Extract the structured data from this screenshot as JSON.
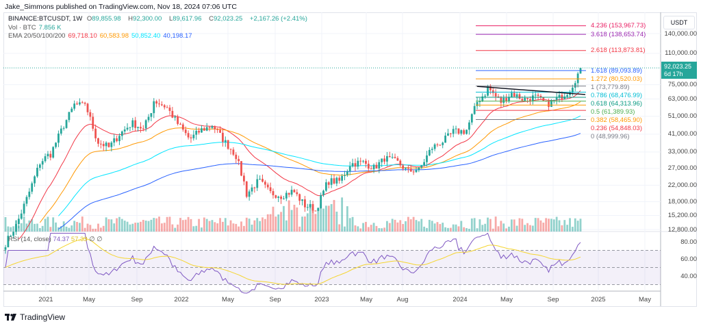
{
  "caption": "Jake_Simmons published on TradingView.com, Nov 18, 2024 07:06 UTC",
  "symbol": {
    "name": "BINANCE:BTCUSDT, 1W",
    "open_label": "O",
    "open": "89,855.98",
    "high_label": "H",
    "high": "92,300.00",
    "low_label": "L",
    "low": "89,617.96",
    "close_label": "C",
    "close": "92,023.25",
    "change": "+2,167.26 (+2.41%)"
  },
  "volume": {
    "label": "Vol · BTC",
    "value": "7.856 K"
  },
  "ema": {
    "label": "EMA 20/50/100/200",
    "values": [
      "69,718.10",
      "60,583.98",
      "50,852.40",
      "40,198.17"
    ],
    "colors": [
      "#f23645",
      "#ff9800",
      "#00e5ff",
      "#2962ff"
    ],
    "periods": [
      20,
      50,
      100,
      200
    ]
  },
  "rsi": {
    "label": "RSI (14, close)",
    "value": "74.37",
    "ma": "57.33",
    "extra1": "∅",
    "extra2": "∅",
    "line_color": "#7e57c2",
    "ma_color": "#f5d52f",
    "axis": [
      "80.00",
      "60.00",
      "40.00"
    ]
  },
  "currency": "USDT",
  "price_axis": [
    "140,000.00",
    "110,000.00",
    "75,000.00",
    "63,000.00",
    "51,000.00",
    "41,000.00",
    "33,000.00",
    "27,000.00",
    "22,000.00",
    "18,000.00",
    "15,200.00",
    "12,800.00"
  ],
  "last_price": {
    "value": "92,023.25",
    "countdown": "6d 17h"
  },
  "time_axis": [
    "2021",
    "May",
    "Sep",
    "2022",
    "May",
    "Sep",
    "2023",
    "May",
    "Aug",
    "2024",
    "May",
    "Sep",
    "2025",
    "May"
  ],
  "fib_levels": [
    {
      "label": "4.236 (153,967.73)",
      "price": 153967.73,
      "color": "#e91e63"
    },
    {
      "label": "3.618 (138,653.74)",
      "price": 138653.74,
      "color": "#9c27b0"
    },
    {
      "label": "2.618 (113,873.81)",
      "price": 113873.81,
      "color": "#f23645"
    },
    {
      "label": "1.618 (89,093.89)",
      "price": 89093.89,
      "color": "#2962ff"
    },
    {
      "label": "1.272 (80,520.03)",
      "price": 80520.03,
      "color": "#ff9800"
    },
    {
      "label": "1 (73,779.89)",
      "price": 73779.89,
      "color": "#787b86"
    },
    {
      "label": "0.786 (68,476.99)",
      "price": 68476.99,
      "color": "#00bcd4"
    },
    {
      "label": "0.618 (64,313.96)",
      "price": 64313.96,
      "color": "#089981"
    },
    {
      "label": "0.5 (61,389.93)",
      "price": 61389.93,
      "color": "#4caf50"
    },
    {
      "label": "0.382 (58,465.90)",
      "price": 58465.9,
      "color": "#ff9800"
    },
    {
      "label": "0.236 (54,848.03)",
      "price": 54848.03,
      "color": "#f23645"
    },
    {
      "label": "0 (48,999.96)",
      "price": 48999.96,
      "color": "#787b86"
    }
  ],
  "colors": {
    "up": "#26a69a",
    "down": "#ef5350"
  },
  "monthly_closes": [
    10800,
    13800,
    19700,
    29000,
    33000,
    45000,
    58800,
    57700,
    37300,
    35000,
    41500,
    47000,
    43800,
    61300,
    57000,
    46300,
    38500,
    43200,
    45500,
    37700,
    31800,
    19900,
    23300,
    20000,
    19400,
    20500,
    17200,
    16500,
    23100,
    23100,
    28500,
    29200,
    27200,
    30500,
    29200,
    26000,
    27000,
    34600,
    37700,
    42300,
    42600,
    61100,
    71300,
    60600,
    67500,
    62700,
    64600,
    59000,
    63300,
    70200,
    92023
  ],
  "logo": "TradingView"
}
